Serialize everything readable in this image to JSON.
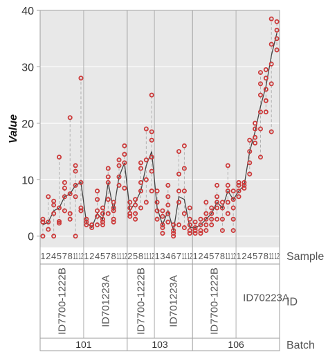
{
  "chart_data": {
    "type": "scatter",
    "ylabel": "Value",
    "ylim": [
      -2,
      40
    ],
    "yticks": [
      0,
      10,
      20,
      30,
      40
    ],
    "grid": true,
    "colors": {
      "panel": "#e8e8e8",
      "point": "#cc3a3a",
      "line": "#444444",
      "range": "#b0b0b0",
      "frame": "#9e9e9e",
      "text": "#555555"
    },
    "row_labels": {
      "sample": "Sample",
      "id": "ID",
      "batch": "Batch"
    },
    "batches": [
      {
        "label": "101",
        "ids": [
          {
            "label": "ID7700-1222B",
            "samples": [
              {
                "label": "1",
                "mean": 2.0,
                "points": [
                  0,
                  2.5,
                  3
                ]
              },
              {
                "label": "2",
                "mean": 2.5,
                "points": [
                  1.2,
                  2.5,
                  7
                ]
              },
              {
                "label": "4",
                "mean": 4.5,
                "points": [
                  0,
                  4,
                  5.5,
                  6.2
                ]
              },
              {
                "label": "5",
                "mean": 5.0,
                "points": [
                  2.3,
                  2.6,
                  5,
                  14
                ]
              },
              {
                "label": "7",
                "mean": 7.0,
                "points": [
                  4.5,
                  7,
                  8.5,
                  9.5
                ]
              },
              {
                "label": "8",
                "mean": 7.5,
                "points": [
                  3,
                  4,
                  7.5,
                  21
                ]
              },
              {
                "label": "11",
                "mean": 9.0,
                "points": [
                  0,
                  7,
                  9,
                  11.5,
                  12.5
                ]
              },
              {
                "label": "12",
                "mean": 9.5,
                "points": [
                  4.5,
                  5,
                  9.5,
                  28
                ]
              }
            ]
          },
          {
            "label": "ID701223A",
            "samples": [
              {
                "label": "1",
                "mean": 2.5,
                "points": [
                  2,
                  2.5,
                  3
                ]
              },
              {
                "label": "2",
                "mean": 1.5,
                "points": [
                  1.5,
                  2
                ]
              },
              {
                "label": "4",
                "mean": 4.0,
                "points": [
                  2,
                  3.5,
                  4.5,
                  6.5,
                  8
                ]
              },
              {
                "label": "5",
                "mean": 3.0,
                "points": [
                  2,
                  2.5,
                  3,
                  4,
                  5
                ]
              },
              {
                "label": "7",
                "mean": 9.5,
                "points": [
                  4,
                  6.5,
                  9.5,
                  10.5,
                  12
                ]
              },
              {
                "label": "8",
                "mean": 4.5,
                "points": [
                  2.5,
                  3,
                  4.5,
                  5,
                  6
                ]
              },
              {
                "label": "11",
                "mean": 10.5,
                "points": [
                  9,
                  10.5,
                  12.5,
                  13.5
                ]
              },
              {
                "label": "12",
                "mean": 13.0,
                "points": [
                  8.5,
                  13,
                  14.5,
                  16
                ]
              }
            ]
          }
        ]
      },
      {
        "label": "103",
        "ids": [
          {
            "label": "ID7700-1222B",
            "samples": [
              {
                "label": "2",
                "mean": 4.5,
                "points": [
                  3.5,
                  4,
                  5,
                  6
                ]
              },
              {
                "label": "5",
                "mean": 6.0,
                "points": [
                  3,
                  4,
                  5.5,
                  6.5
                ]
              },
              {
                "label": "8",
                "mean": 8.0,
                "points": [
                  5,
                  8,
                  9.5,
                  12,
                  13
                ]
              },
              {
                "label": "11",
                "mean": 12.5,
                "points": [
                  6,
                  10,
                  13.5,
                  19
                ]
              },
              {
                "label": "12",
                "mean": 15.0,
                "points": [
                  8,
                  11.5,
                  14,
                  17,
                  18.5,
                  25
                ]
              }
            ]
          },
          {
            "label": "ID701223A",
            "samples": [
              {
                "label": "1",
                "mean": 5.0,
                "points": [
                  3,
                  4.5,
                  6,
                  8
                ]
              },
              {
                "label": "3",
                "mean": 2.0,
                "points": [
                  0.5,
                  1.5,
                  2,
                  3.5,
                  4.5
                ]
              },
              {
                "label": "4",
                "mean": 4.5,
                "points": [
                  2.5,
                  4,
                  5.5,
                  7,
                  9
                ]
              },
              {
                "label": "6",
                "mean": 1.0,
                "points": [
                  0,
                  0.5,
                  1,
                  2
                ]
              },
              {
                "label": "7",
                "mean": 7.0,
                "points": [
                  2,
                  6,
                  8,
                  11,
                  15
                ]
              },
              {
                "label": "11",
                "mean": 6.5,
                "points": [
                  1.5,
                  4,
                  8,
                  12,
                  16
                ]
              },
              {
                "label": "12",
                "mean": 1.5,
                "points": [
                  0.5,
                  1,
                  2,
                  3,
                  5
                ]
              }
            ]
          }
        ]
      },
      {
        "label": "106",
        "ids": [
          {
            "label": "ID7700-1222B",
            "samples": [
              {
                "label": "1",
                "mean": 1.5,
                "points": [
                  0.5,
                  1,
                  1.5,
                  2.5
                ]
              },
              {
                "label": "2",
                "mean": 2.0,
                "points": [
                  0.5,
                  1,
                  2,
                  3
                ]
              },
              {
                "label": "4",
                "mean": 3.0,
                "points": [
                  1,
                  2,
                  3,
                  4,
                  6
                ]
              },
              {
                "label": "5",
                "mean": 4.0,
                "points": [
                  2,
                  3,
                  4,
                  5
                ]
              },
              {
                "label": "7",
                "mean": 6.0,
                "points": [
                  3,
                  5,
                  6,
                  7,
                  9
                ]
              },
              {
                "label": "8",
                "mean": 5.0,
                "points": [
                  1,
                  3,
                  5,
                  6
                ]
              },
              {
                "label": "11",
                "mean": 8.0,
                "points": [
                  4,
                  6,
                  8,
                  9,
                  12.5
                ]
              },
              {
                "label": "12",
                "mean": 6.5,
                "points": [
                  1,
                  3,
                  5,
                  6.5,
                  8
                ]
              }
            ]
          },
          {
            "label": "ID70223A",
            "samples": [
              {
                "label": "1",
                "mean": 8.0,
                "points": [
                  7,
                  8,
                  9,
                  9.5
                ]
              },
              {
                "label": "2",
                "mean": 9.0,
                "points": [
                  8.5,
                  9,
                  9.5
                ]
              },
              {
                "label": "4",
                "mean": 15.0,
                "points": [
                  11,
                  13,
                  15,
                  17
                ]
              },
              {
                "label": "5",
                "mean": 18.5,
                "points": [
                  16.5,
                  17.5,
                  19,
                  20
                ]
              },
              {
                "label": "7",
                "mean": 23.0,
                "points": [
                  14,
                  19,
                  22,
                  25,
                  27,
                  29
                ]
              },
              {
                "label": "8",
                "mean": 26.5,
                "points": [
                  22,
                  24,
                  26,
                  28,
                  29.5
                ]
              },
              {
                "label": "11",
                "mean": 32.0,
                "points": [
                  18.5,
                  27,
                  30.5,
                  34,
                  38.5
                ]
              },
              {
                "label": "12",
                "mean": 36.0,
                "points": [
                  33,
                  35,
                  36.5,
                  38
                ]
              }
            ]
          }
        ]
      }
    ]
  }
}
